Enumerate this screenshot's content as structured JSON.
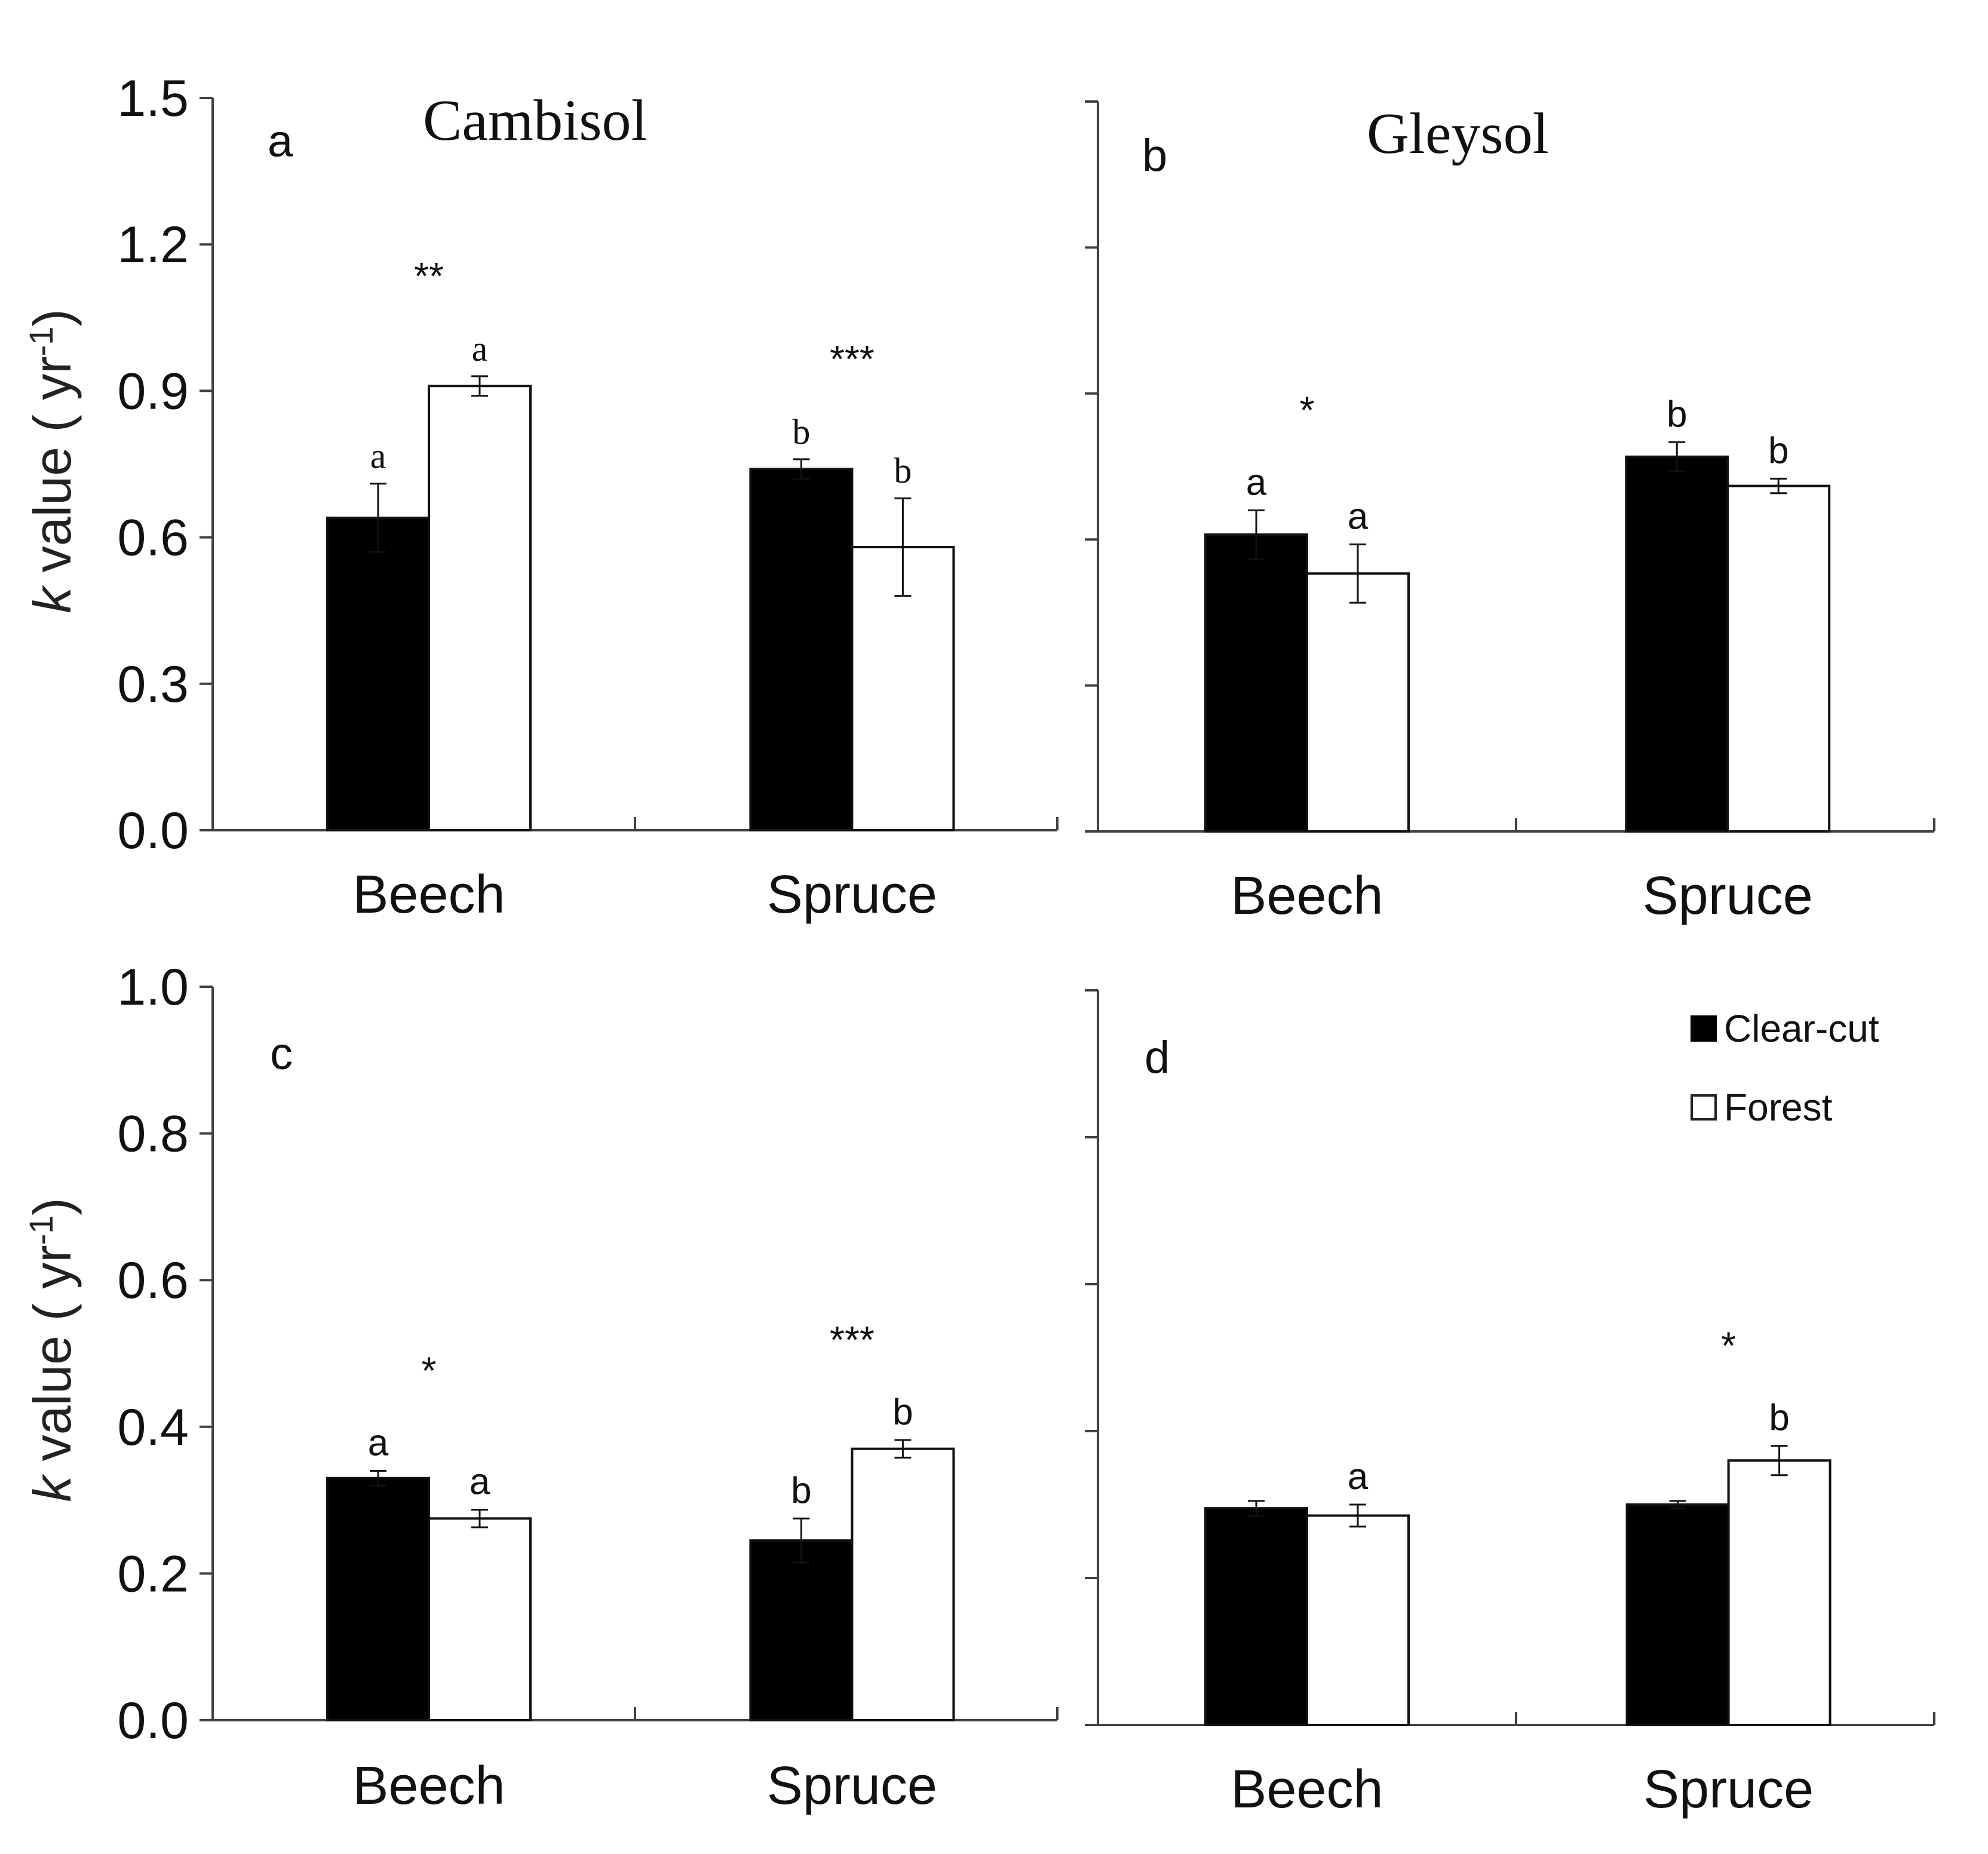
{
  "legend": {
    "items": [
      {
        "label": "Clear-cut",
        "fill": "#000000"
      },
      {
        "label": "Forest",
        "fill": "#ffffff"
      }
    ],
    "placement": "panel d, top-right"
  },
  "colors": {
    "clear_cut": "#000000",
    "forest": "#ffffff",
    "axis": "#404040"
  },
  "chart_data": [
    {
      "type": "bar",
      "panel": "a",
      "title": "Cambisol",
      "ylabel_italic": "k",
      "ylabel_text": " value ( yr",
      "ylabel_sup": "-1",
      "ylabel_close": ")",
      "ylim": [
        0,
        1.5
      ],
      "yticks": [
        "0.0",
        "0.3",
        "0.6",
        "0.9",
        "1.2",
        "1.5"
      ],
      "categories": [
        "Beech",
        "Spruce"
      ],
      "series": [
        {
          "name": "Clear-cut",
          "values": [
            0.64,
            0.74
          ],
          "errors": [
            0.07,
            0.02
          ],
          "letters": [
            "a",
            "b"
          ]
        },
        {
          "name": "Forest",
          "values": [
            0.91,
            0.58
          ],
          "errors": [
            0.02,
            0.1
          ],
          "letters": [
            "a",
            "b"
          ]
        }
      ],
      "significance": [
        "**",
        "***"
      ]
    },
    {
      "type": "bar",
      "panel": "b",
      "title": "Gleysol",
      "ylim": [
        0,
        1.5
      ],
      "yticks": [],
      "categories": [
        "Beech",
        "Spruce"
      ],
      "series": [
        {
          "name": "Clear-cut",
          "values": [
            0.61,
            0.77
          ],
          "errors": [
            0.05,
            0.03
          ],
          "letters": [
            "a",
            "b"
          ]
        },
        {
          "name": "Forest",
          "values": [
            0.53,
            0.71
          ],
          "errors": [
            0.06,
            0.015
          ],
          "letters": [
            "a",
            "b"
          ]
        }
      ],
      "significance": [
        "*",
        ""
      ]
    },
    {
      "type": "bar",
      "panel": "c",
      "title": "",
      "ylabel_italic": "k",
      "ylabel_text": " value ( yr",
      "ylabel_sup": "-1",
      "ylabel_close": ")",
      "ylim": [
        0,
        1.0
      ],
      "yticks": [
        "0.0",
        "0.2",
        "0.4",
        "0.6",
        "0.8",
        "1.0"
      ],
      "categories": [
        "Beech",
        "Spruce"
      ],
      "series": [
        {
          "name": "Clear-cut",
          "values": [
            0.33,
            0.245
          ],
          "errors": [
            0.01,
            0.03
          ],
          "letters": [
            "a",
            "b"
          ]
        },
        {
          "name": "Forest",
          "values": [
            0.275,
            0.37
          ],
          "errors": [
            0.012,
            0.012
          ],
          "letters": [
            "a",
            "b"
          ]
        }
      ],
      "significance": [
        "*",
        "***"
      ]
    },
    {
      "type": "bar",
      "panel": "d",
      "title": "",
      "ylim": [
        0,
        1.0
      ],
      "yticks": [],
      "categories": [
        "Beech",
        "Spruce"
      ],
      "series": [
        {
          "name": "Clear-cut",
          "values": [
            0.295,
            0.3
          ],
          "errors": [
            0.01,
            0.005
          ],
          "letters": [
            "",
            ""
          ]
        },
        {
          "name": "Forest",
          "values": [
            0.285,
            0.36
          ],
          "errors": [
            0.015,
            0.02
          ],
          "letters": [
            "a",
            "b"
          ]
        }
      ],
      "significance": [
        "",
        "*"
      ]
    }
  ]
}
